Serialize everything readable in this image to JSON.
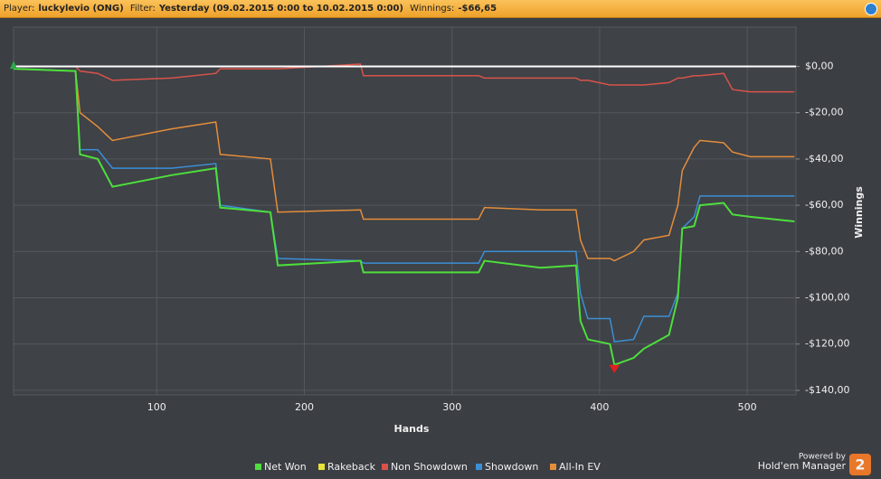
{
  "header": {
    "player_label": "Player:",
    "player": "luckylevio (ONG)",
    "filter_label": "Filter:",
    "filter": "Yesterday (09.02.2015 0:00 to 10.02.2015 0:00)",
    "winnings_label": "Winnings:",
    "winnings": "-$66,65"
  },
  "footer": {
    "powered_by": "Powered by",
    "brand": "Hold'em Manager",
    "logo": "2"
  },
  "chart_data": {
    "type": "line",
    "x_label": "Hands",
    "y_label": "Winnings",
    "x": [
      3,
      45,
      48,
      60,
      70,
      110,
      140,
      143,
      177,
      182,
      238,
      240,
      318,
      322,
      360,
      384,
      387,
      392,
      407,
      410,
      423,
      430,
      447,
      453,
      456,
      464,
      468,
      484,
      490,
      502,
      532
    ],
    "series": [
      {
        "name": "Net Won",
        "color": "#4ddf3c",
        "values": [
          -1,
          -2,
          -38,
          -40,
          -52,
          -47,
          -44,
          -61,
          -63,
          -86,
          -84,
          -89,
          -89,
          -84,
          -87,
          -86,
          -110,
          -118,
          -120,
          -129,
          -126,
          -122,
          -116,
          -100,
          -70,
          -69,
          -60,
          -59,
          -64,
          -65,
          -67
        ]
      },
      {
        "name": "Rakeback",
        "color": "#e8e23a",
        "values": [
          0,
          0,
          0,
          0,
          0,
          0,
          0,
          0,
          0,
          0,
          0,
          0,
          0,
          0,
          0,
          0,
          0,
          0,
          0,
          0,
          0,
          0,
          0,
          0,
          0,
          0,
          0,
          0,
          0,
          0,
          0
        ]
      },
      {
        "name": "Non Showdown",
        "color": "#d9534a",
        "values": [
          0,
          0,
          -2,
          -3,
          -6,
          -5,
          -3,
          -1,
          -1,
          -1,
          1,
          -4,
          -4,
          -5,
          -5,
          -5,
          -6,
          -6,
          -8,
          -8,
          -8,
          -8,
          -7,
          -5,
          -5,
          -4,
          -4,
          -3,
          -10,
          -11,
          -11
        ]
      },
      {
        "name": "Showdown",
        "color": "#3b8fd6",
        "values": [
          -1,
          -2,
          -36,
          -36,
          -44,
          -44,
          -42,
          -60,
          -63,
          -83,
          -84,
          -85,
          -85,
          -80,
          -80,
          -80,
          -98,
          -109,
          -109,
          -119,
          -118,
          -108,
          -108,
          -98,
          -70,
          -65,
          -56,
          -56,
          -56,
          -56,
          -56
        ]
      },
      {
        "name": "All-In EV",
        "color": "#e58d3a",
        "values": [
          -1,
          -2,
          -20,
          -26,
          -32,
          -27,
          -24,
          -38,
          -40,
          -63,
          -62,
          -66,
          -66,
          -61,
          -62,
          -62,
          -75,
          -83,
          -83,
          -84,
          -80,
          -75,
          -73,
          -60,
          -45,
          -35,
          -32,
          -33,
          -37,
          -39,
          -39
        ]
      }
    ],
    "xlim": [
      3,
      533
    ],
    "xticks": [
      100,
      200,
      300,
      400,
      500
    ],
    "ylim": [
      -142,
      17
    ],
    "yticks": [
      {
        "value": 0,
        "label": "$0,00"
      },
      {
        "value": -20,
        "label": "-$20,00"
      },
      {
        "value": -40,
        "label": "-$40,00"
      },
      {
        "value": -60,
        "label": "-$60,00"
      },
      {
        "value": -80,
        "label": "-$80,00"
      },
      {
        "value": -100,
        "label": "-$100,00"
      },
      {
        "value": -120,
        "label": "-$120,00"
      },
      {
        "value": -140,
        "label": "-$140,00"
      }
    ],
    "grid": true
  }
}
